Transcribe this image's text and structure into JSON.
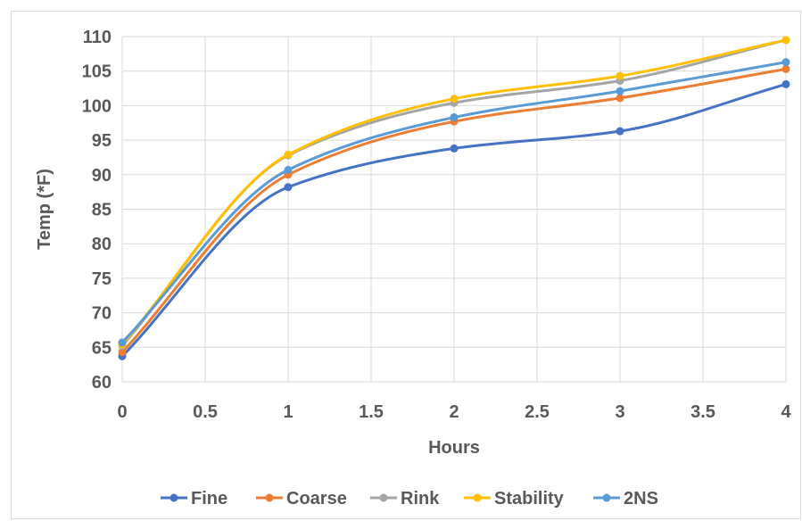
{
  "chart_data": {
    "type": "line",
    "title": "",
    "xlabel": "Hours",
    "ylabel": "Temp (*F)",
    "xlim": [
      0,
      4
    ],
    "ylim": [
      60,
      110
    ],
    "x_ticks": [
      "0",
      "0.5",
      "1",
      "1.5",
      "2",
      "2.5",
      "3",
      "3.5",
      "4"
    ],
    "y_ticks": [
      "60",
      "65",
      "70",
      "75",
      "80",
      "85",
      "90",
      "95",
      "100",
      "105",
      "110"
    ],
    "grid": true,
    "smooth": true,
    "legend_position": "bottom",
    "x": [
      0,
      1,
      2,
      3,
      4
    ],
    "series": [
      {
        "name": "Fine",
        "color": "#4472c4",
        "values": [
          63.7,
          88.2,
          93.8,
          96.3,
          103.1
        ]
      },
      {
        "name": "Coarse",
        "color": "#ed7d31",
        "values": [
          64.3,
          90.0,
          97.7,
          101.1,
          105.3
        ]
      },
      {
        "name": "Rink",
        "color": "#a5a5a5",
        "values": [
          65.2,
          92.8,
          100.4,
          103.6,
          109.5
        ]
      },
      {
        "name": "Stability",
        "color": "#ffc000",
        "values": [
          65.4,
          92.9,
          101.0,
          104.3,
          109.5
        ]
      },
      {
        "name": "2NS",
        "color": "#5b9bd5",
        "values": [
          65.7,
          90.7,
          98.3,
          102.1,
          106.3
        ]
      }
    ]
  }
}
